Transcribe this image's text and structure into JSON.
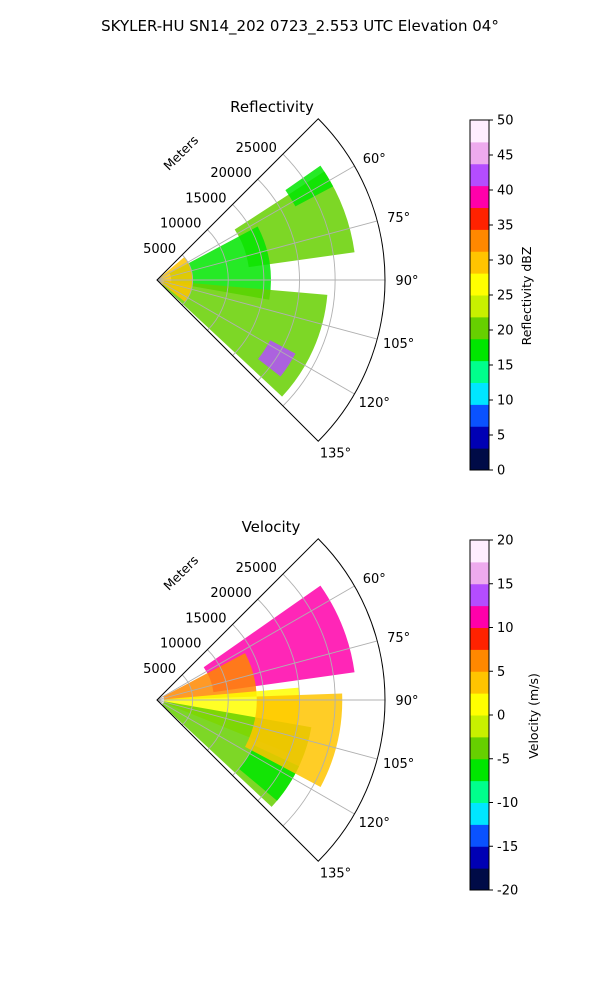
{
  "figure_title": "SKYLER-HU  SN14_202  0723_2.553 UTC Elevation 04°",
  "chart_data": [
    {
      "type": "heatmap",
      "subtype": "polar-sector (radar PPI)",
      "title": "Reflectivity",
      "radial_axis_label": "Meters",
      "radial_ticks": [
        "5000",
        "10000",
        "15000",
        "20000",
        "25000"
      ],
      "radial_tick_values": [
        5000,
        10000,
        15000,
        20000,
        25000
      ],
      "radial_range": [
        0,
        32000
      ],
      "angle_ticks": [
        "60°",
        "75°",
        "90°",
        "105°",
        "120°",
        "135°"
      ],
      "angle_tick_values": [
        60,
        75,
        90,
        105,
        120,
        135
      ],
      "angle_range": [
        45,
        135
      ],
      "grid": true,
      "colorbar": {
        "label": "Reflectivity dBZ",
        "range": [
          0,
          50
        ],
        "ticks": [
          "0",
          "5",
          "10",
          "15",
          "20",
          "25",
          "30",
          "35",
          "40",
          "45",
          "50"
        ],
        "colors": [
          "#000b47",
          "#0000b4",
          "#0a52ff",
          "#00e6ff",
          "#00ff8c",
          "#00e600",
          "#66d000",
          "#c8f000",
          "#ffff00",
          "#ffc400",
          "#ff8800",
          "#ff2200",
          "#ff00aa",
          "#b44dff",
          "#eeaaee",
          "#ffeeff"
        ]
      },
      "echo_regions": [
        {
          "azimuth_range": [
            57,
            82
          ],
          "range_m": [
            13000,
            28000
          ],
          "value": 20
        },
        {
          "azimuth_range": [
            62,
            100
          ],
          "range_m": [
            2000,
            16000
          ],
          "value": 16
        },
        {
          "azimuth_range": [
            95,
            133
          ],
          "range_m": [
            1000,
            24000
          ],
          "value": 20
        },
        {
          "azimuth_range": [
            118,
            128
          ],
          "range_m": [
            18000,
            22000
          ],
          "value": 42
        },
        {
          "azimuth_range": [
            50,
            128
          ],
          "range_m": [
            0,
            5000
          ],
          "value": 30
        },
        {
          "azimuth_range": [
            55,
            62
          ],
          "range_m": [
            22000,
            28000
          ],
          "value": 18
        }
      ]
    },
    {
      "type": "heatmap",
      "subtype": "polar-sector (radar PPI)",
      "title": "Velocity",
      "radial_axis_label": "Meters",
      "radial_ticks": [
        "5000",
        "10000",
        "15000",
        "20000",
        "25000"
      ],
      "radial_tick_values": [
        5000,
        10000,
        15000,
        20000,
        25000
      ],
      "radial_range": [
        0,
        32000
      ],
      "angle_ticks": [
        "60°",
        "75°",
        "90°",
        "105°",
        "120°",
        "135°"
      ],
      "angle_tick_values": [
        60,
        75,
        90,
        105,
        120,
        135
      ],
      "angle_range": [
        45,
        135
      ],
      "grid": true,
      "colorbar": {
        "label": "Velocity (m/s)",
        "range": [
          -20,
          20
        ],
        "ticks": [
          "-20",
          "-15",
          "-10",
          "-5",
          "0",
          "5",
          "10",
          "15",
          "20"
        ],
        "colors": [
          "#000b47",
          "#0000b4",
          "#0a52ff",
          "#00e6ff",
          "#00ff8c",
          "#00e600",
          "#66d000",
          "#c8f000",
          "#ffff00",
          "#ffc400",
          "#ff8800",
          "#ff2200",
          "#ff00aa",
          "#b44dff",
          "#eeaaee",
          "#ffeeff"
        ]
      },
      "echo_regions": [
        {
          "azimuth_range": [
            55,
            82
          ],
          "range_m": [
            8000,
            28000
          ],
          "value": 10
        },
        {
          "azimuth_range": [
            62,
            88
          ],
          "range_m": [
            1000,
            14000
          ],
          "value": 7
        },
        {
          "azimuth_range": [
            85,
            112
          ],
          "range_m": [
            1000,
            20000
          ],
          "value": 2
        },
        {
          "azimuth_range": [
            100,
            133
          ],
          "range_m": [
            1000,
            22000
          ],
          "value": -3
        },
        {
          "azimuth_range": [
            115,
            130
          ],
          "range_m": [
            15000,
            22000
          ],
          "value": -6
        },
        {
          "azimuth_range": [
            88,
            118
          ],
          "range_m": [
            14000,
            26000
          ],
          "value": 3
        }
      ]
    }
  ]
}
